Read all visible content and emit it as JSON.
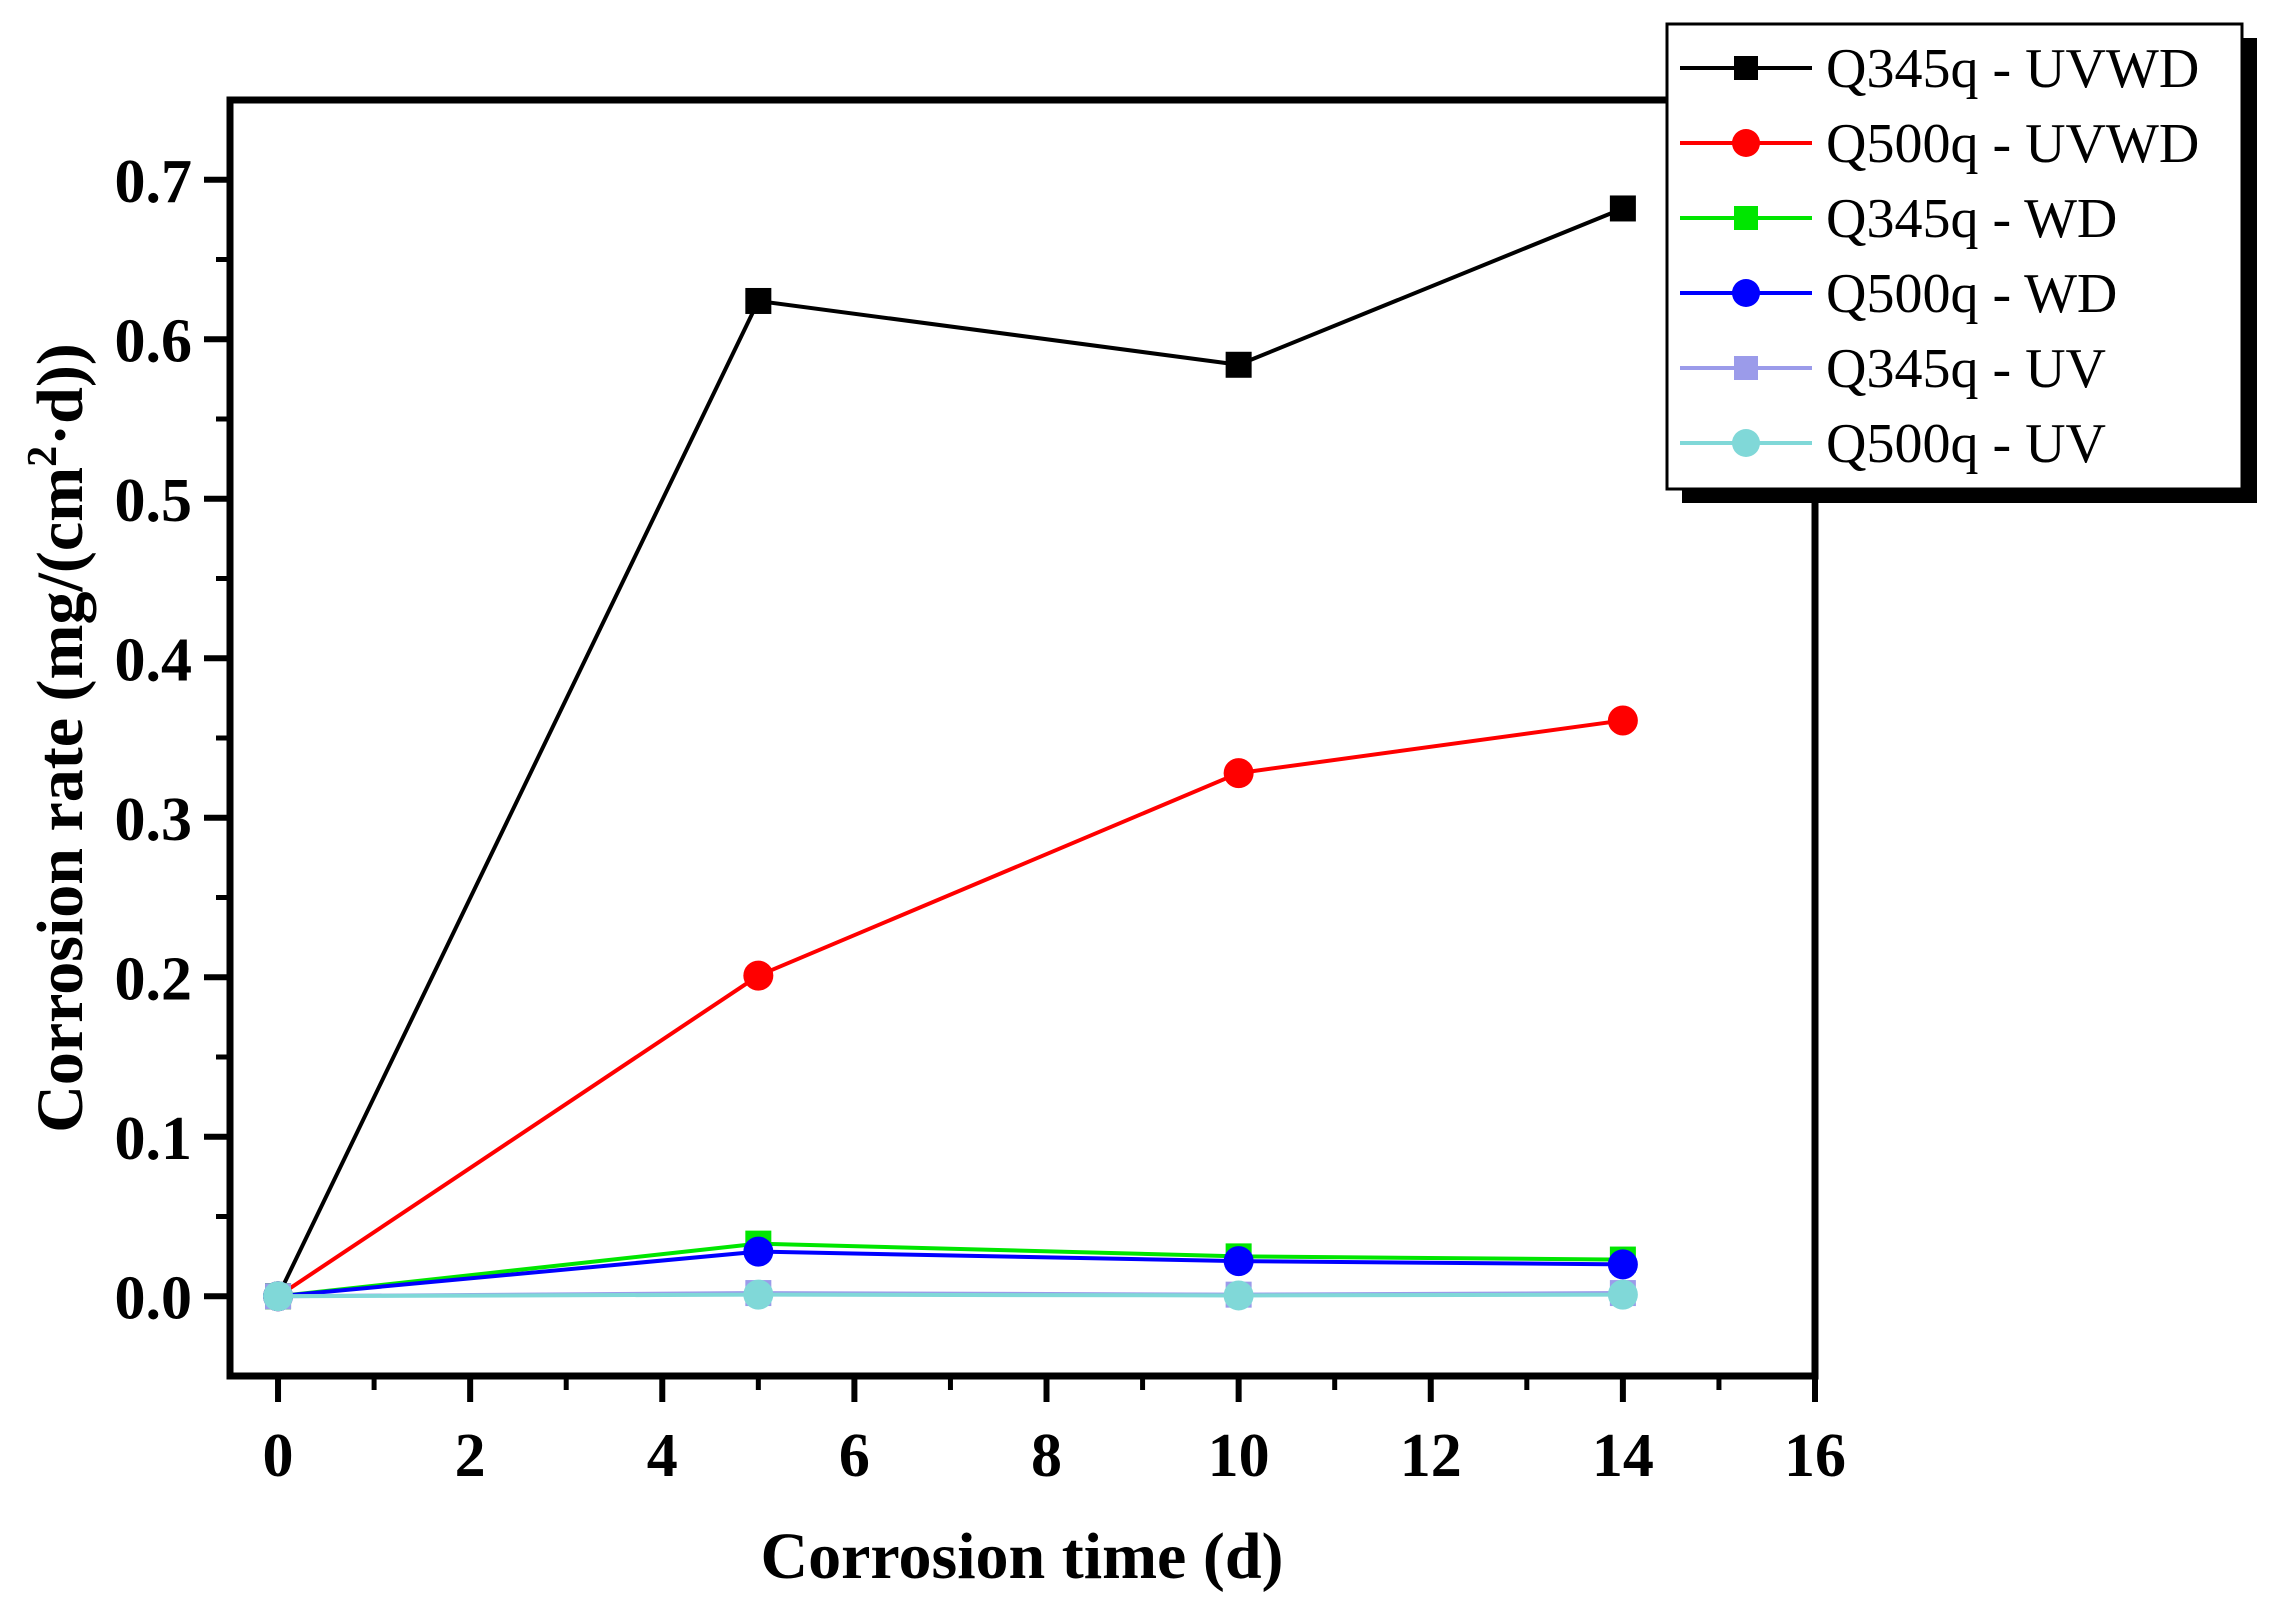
{
  "chart_data": {
    "type": "line",
    "title": "",
    "xlabel": "Corrosion time (d)",
    "ylabel_parts": {
      "prefix": "Corrosion rate (mg/(cm",
      "superscript": "2",
      "suffix": "·d))"
    },
    "xlim": [
      -0.5,
      16
    ],
    "ylim": [
      -0.05,
      0.75
    ],
    "xticks": [
      0,
      2,
      4,
      6,
      8,
      10,
      12,
      14,
      16
    ],
    "xtick_labels": [
      "0",
      "2",
      "4",
      "6",
      "8",
      "10",
      "12",
      "14",
      "16"
    ],
    "yticks": [
      0.0,
      0.1,
      0.2,
      0.3,
      0.4,
      0.5,
      0.6,
      0.7
    ],
    "ytick_labels": [
      "0.0",
      "0.1",
      "0.2",
      "0.3",
      "0.4",
      "0.5",
      "0.6",
      "0.7"
    ],
    "grid": false,
    "legend_position": "top-right",
    "x": [
      0,
      5,
      10,
      14
    ],
    "series": [
      {
        "name": "Q345q - UVWD",
        "color": "#000000",
        "marker": "square",
        "values": [
          0,
          0.624,
          0.584,
          0.682
        ]
      },
      {
        "name": "Q500q - UVWD",
        "color": "#ff0000",
        "marker": "circle",
        "values": [
          0,
          0.201,
          0.328,
          0.361
        ]
      },
      {
        "name": "Q345q - WD",
        "color": "#00e600",
        "marker": "square",
        "values": [
          0,
          0.033,
          0.025,
          0.023
        ]
      },
      {
        "name": "Q500q - WD",
        "color": "#0000ff",
        "marker": "circle",
        "values": [
          0,
          0.028,
          0.022,
          0.02
        ]
      },
      {
        "name": "Q345q - UV",
        "color": "#9b9bea",
        "marker": "square",
        "values": [
          0,
          0.002,
          0.001,
          0.002
        ]
      },
      {
        "name": "Q500q - UV",
        "color": "#80d8d8",
        "marker": "circle",
        "values": [
          0,
          0.001,
          0.0005,
          0.001
        ]
      }
    ]
  }
}
